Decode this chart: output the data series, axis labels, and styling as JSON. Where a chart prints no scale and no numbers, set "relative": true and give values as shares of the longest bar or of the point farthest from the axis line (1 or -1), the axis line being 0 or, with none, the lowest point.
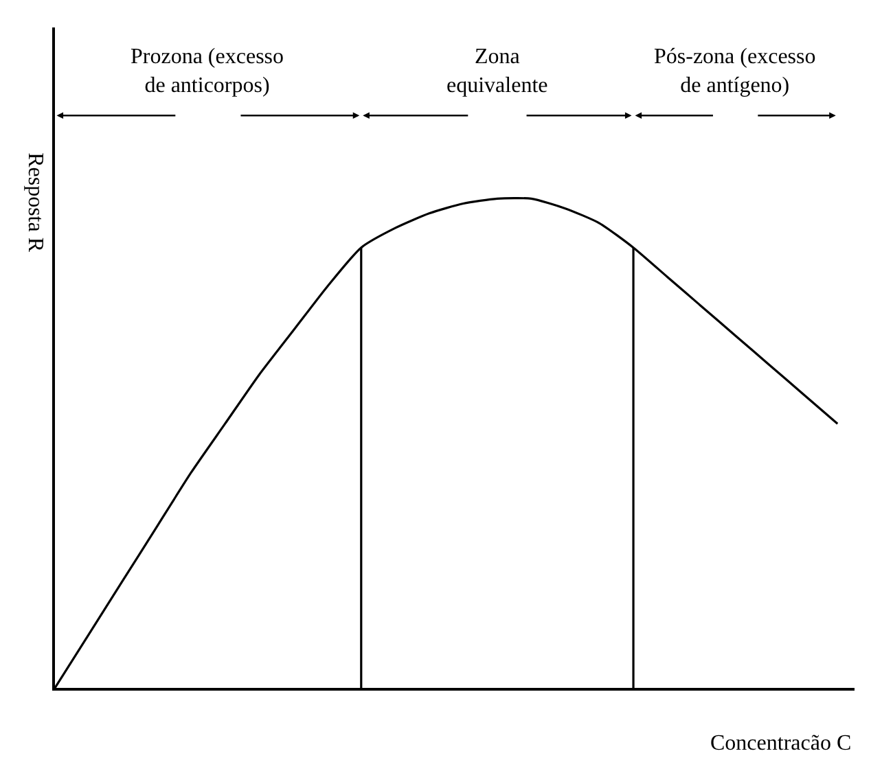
{
  "chart_data": {
    "type": "line",
    "relative": true,
    "xlabel": "Concentracão C",
    "ylabel": "Resposta R",
    "categories": [
      null,
      null,
      null,
      null,
      null,
      null,
      null,
      null,
      null,
      null,
      null,
      null,
      null,
      null,
      null,
      null,
      null,
      null,
      null,
      null,
      null,
      null,
      null,
      null
    ],
    "series": [
      {
        "color": "#000000",
        "values": [
          0,
          0.11,
          0.22,
          0.33,
          0.44,
          0.54,
          0.64,
          0.73,
          0.82,
          0.9,
          0.94,
          0.97,
          0.99,
          1.0,
          1.0,
          0.98,
          0.95,
          0.9,
          0.84,
          0.78,
          0.72,
          0.66,
          0.6,
          0.54
        ]
      }
    ],
    "annotations": [
      "Prozona (excesso\nde anticorpos)",
      "Zona\nequivalente",
      "Pós-zona (excesso\nde antígeno)"
    ],
    "marker": "none",
    "line_style": "solid"
  }
}
